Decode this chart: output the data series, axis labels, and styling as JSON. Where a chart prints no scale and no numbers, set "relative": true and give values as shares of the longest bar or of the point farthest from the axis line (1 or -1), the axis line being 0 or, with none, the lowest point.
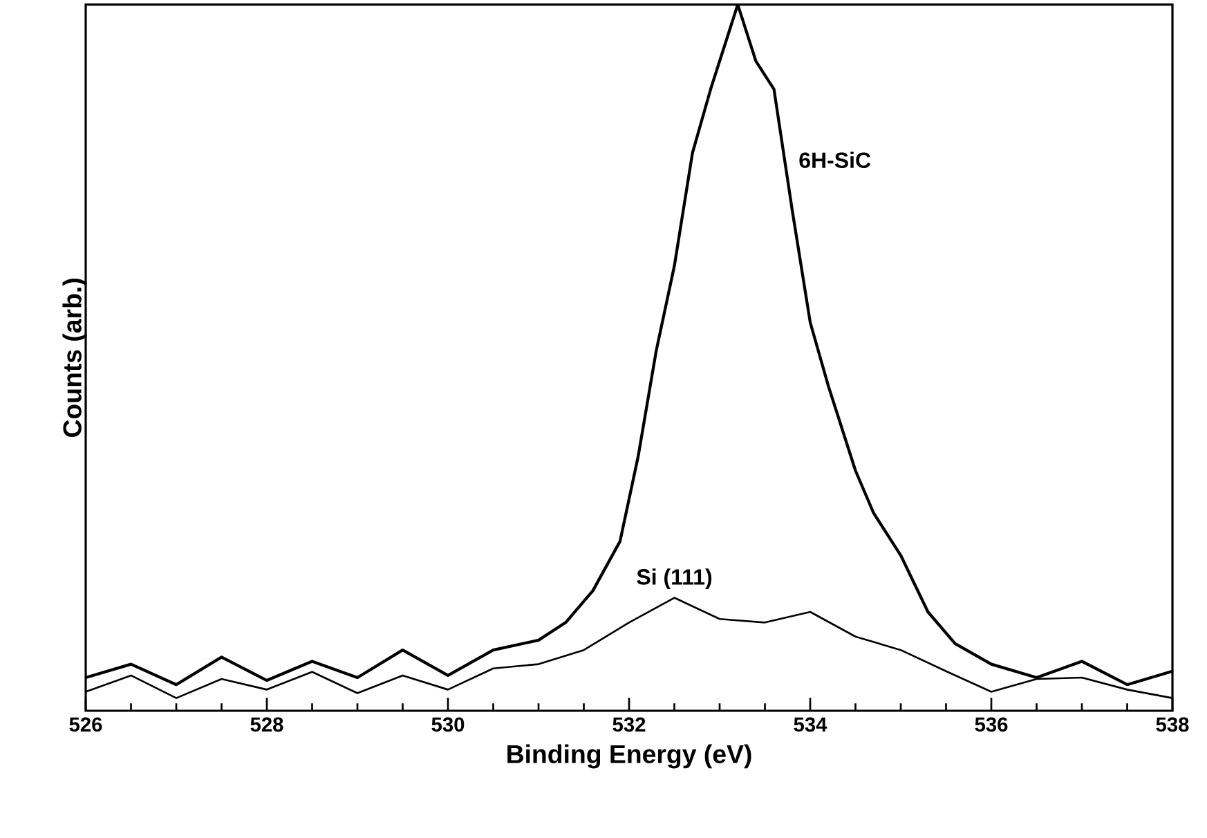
{
  "chart_data": {
    "type": "line",
    "xlabel": "Binding Energy (eV)",
    "ylabel": "Counts (arb.)",
    "relative": true,
    "xlim": [
      526,
      538
    ],
    "xticks": [
      526,
      528,
      530,
      532,
      534,
      536,
      538
    ],
    "tick_labels": "x",
    "series": [
      {
        "name": "6H-SiC",
        "color": "#000000",
        "x": [
          526,
          526.5,
          527,
          527.5,
          528,
          528.5,
          529,
          529.5,
          530,
          530.5,
          531,
          531.3,
          531.6,
          531.9,
          532.1,
          532.3,
          532.5,
          532.7,
          532.9,
          533.1,
          533.2,
          533.4,
          533.6,
          533.8,
          534.0,
          534.2,
          534.5,
          534.7,
          535.0,
          535.3,
          535.6,
          536,
          536.5,
          537,
          537.5,
          538
        ],
        "values": [
          0.047,
          0.066,
          0.037,
          0.076,
          0.043,
          0.07,
          0.047,
          0.086,
          0.05,
          0.086,
          0.1,
          0.125,
          0.17,
          0.24,
          0.36,
          0.51,
          0.63,
          0.79,
          0.88,
          0.96,
          1,
          0.92,
          0.88,
          0.71,
          0.55,
          0.46,
          0.34,
          0.28,
          0.22,
          0.14,
          0.095,
          0.066,
          0.047,
          0.07,
          0.037,
          0.056
        ]
      },
      {
        "name": "Si (111)",
        "color": "#000000",
        "x": [
          526,
          526.5,
          527,
          527.5,
          528,
          528.5,
          529,
          529.5,
          530,
          530.5,
          531,
          531.5,
          532,
          532.5,
          533,
          533.5,
          534,
          534.5,
          535,
          535.5,
          536,
          536.5,
          537,
          537.5,
          538
        ],
        "values": [
          0.027,
          0.05,
          0.018,
          0.045,
          0.03,
          0.055,
          0.025,
          0.05,
          0.03,
          0.06,
          0.066,
          0.086,
          0.125,
          0.16,
          0.13,
          0.125,
          0.14,
          0.105,
          0.086,
          0.056,
          0.027,
          0.045,
          0.047,
          0.03,
          0.018
        ]
      }
    ]
  }
}
